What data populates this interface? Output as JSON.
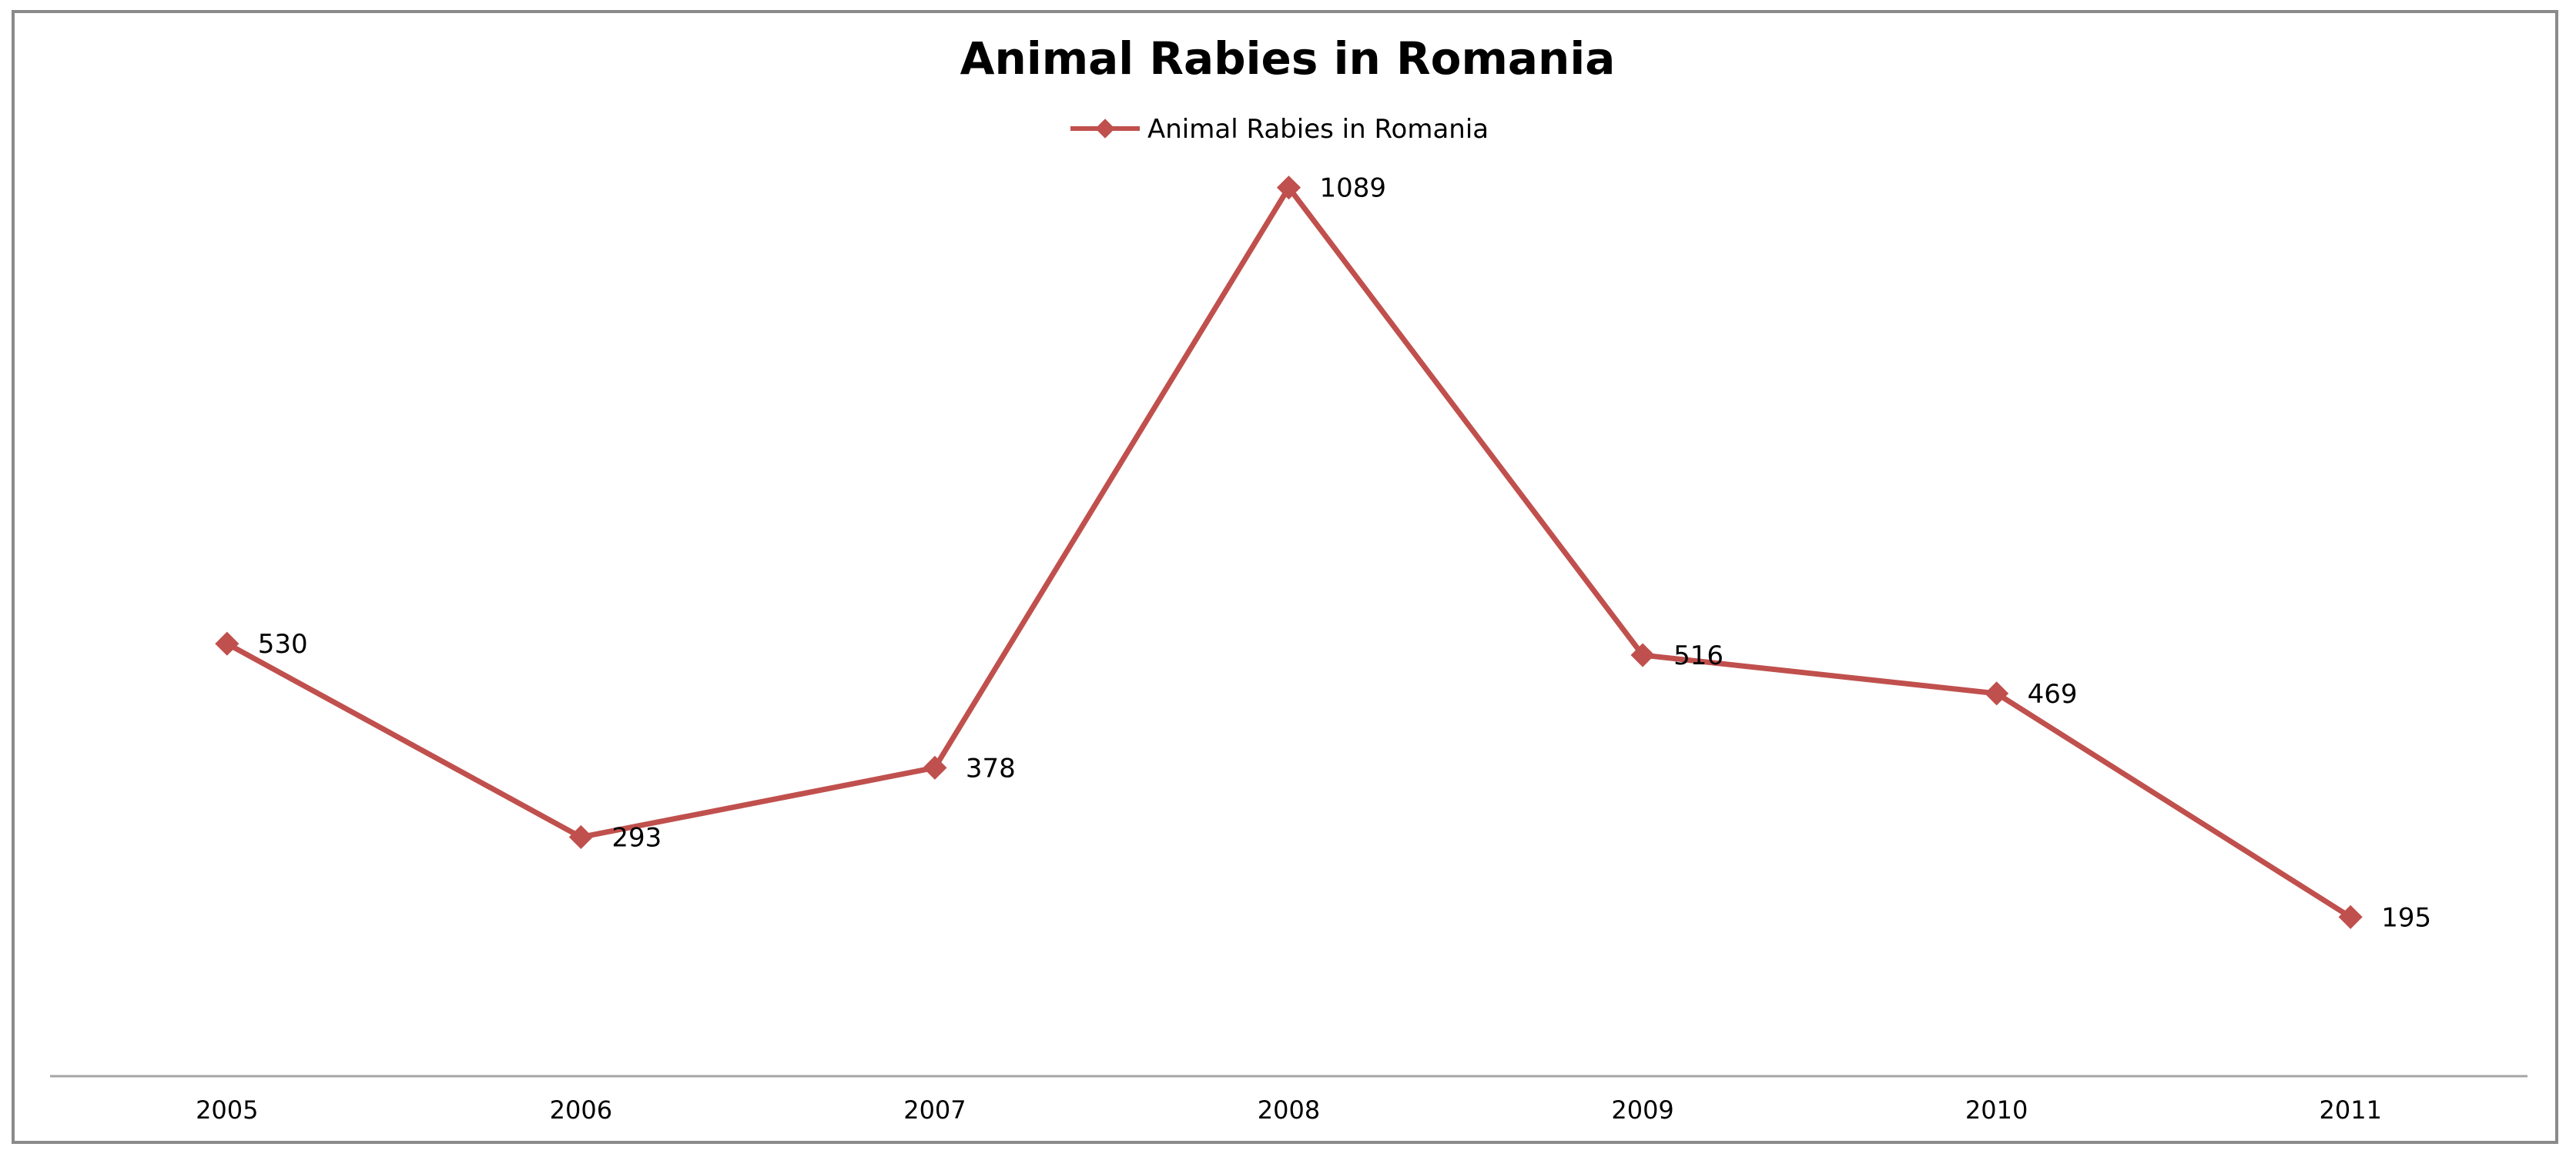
{
  "chart_data": {
    "type": "line",
    "title": "Animal Rabies in Romania",
    "xlabel": "",
    "ylabel": "",
    "categories": [
      "2005",
      "2006",
      "2007",
      "2008",
      "2009",
      "2010",
      "2011"
    ],
    "series": [
      {
        "name": "Animal Rabies in Romania",
        "values": [
          530,
          293,
          378,
          1089,
          516,
          469,
          195
        ],
        "color": "#c0504d",
        "marker": "diamond"
      }
    ],
    "data_labels": true,
    "legend": "top",
    "grid": false,
    "ylim": [
      0,
      1200
    ]
  }
}
